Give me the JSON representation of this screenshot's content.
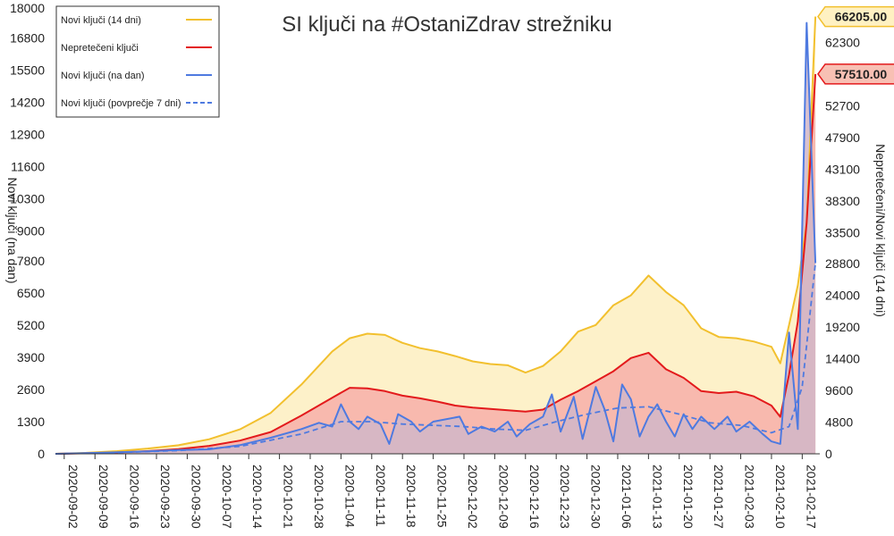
{
  "chart_data": {
    "type": "line",
    "title": "SI ključi na #OstaniZdrav strežniku",
    "y_left_label": "Novi ključi (na dan)",
    "y_right_label": "Nepretečeni/Novi ključi (14 dni)",
    "y_left_range": [
      0,
      18000
    ],
    "y_right_range": [
      0,
      67500
    ],
    "y_left_ticks": [
      "0",
      "1300",
      "2600",
      "3900",
      "5200",
      "6500",
      "7800",
      "9000",
      "10300",
      "11600",
      "12900",
      "14200",
      "15500",
      "16800",
      "18000"
    ],
    "y_right_ticks": [
      "0",
      "4800",
      "9600",
      "14400",
      "19200",
      "24000",
      "28800",
      "33500",
      "38300",
      "43100",
      "47900",
      "52700",
      "57500",
      "62300"
    ],
    "x_range": [
      "2020-08-31",
      "2021-02-21"
    ],
    "x_ticks": [
      "2020-09-02",
      "2020-09-09",
      "2020-09-16",
      "2020-09-23",
      "2020-09-30",
      "2020-10-07",
      "2020-10-14",
      "2020-10-21",
      "2020-10-28",
      "2020-11-04",
      "2020-11-11",
      "2020-11-18",
      "2020-11-25",
      "2020-12-02",
      "2020-12-09",
      "2020-12-16",
      "2020-12-23",
      "2020-12-30",
      "2021-01-06",
      "2021-01-13",
      "2021-01-20",
      "2021-01-27",
      "2021-02-03",
      "2021-02-10",
      "2021-02-17"
    ],
    "legend_position": "top-left",
    "grid": false,
    "series": [
      {
        "name": "Novi ključi (14 dni)",
        "axis": "right",
        "color": "#f2c02e",
        "fill": "#fdf1c9",
        "style": "solid",
        "points": [
          [
            "2020-08-31",
            0
          ],
          [
            "2020-09-07",
            150
          ],
          [
            "2020-09-14",
            400
          ],
          [
            "2020-09-21",
            800
          ],
          [
            "2020-09-28",
            1300
          ],
          [
            "2020-10-05",
            2200
          ],
          [
            "2020-10-12",
            3700
          ],
          [
            "2020-10-19",
            6200
          ],
          [
            "2020-10-26",
            10500
          ],
          [
            "2020-11-02",
            15500
          ],
          [
            "2020-11-06",
            17500
          ],
          [
            "2020-11-10",
            18200
          ],
          [
            "2020-11-14",
            18000
          ],
          [
            "2020-11-18",
            16800
          ],
          [
            "2020-11-22",
            16000
          ],
          [
            "2020-11-26",
            15500
          ],
          [
            "2020-11-30",
            14800
          ],
          [
            "2020-12-04",
            14000
          ],
          [
            "2020-12-08",
            13600
          ],
          [
            "2020-12-12",
            13400
          ],
          [
            "2020-12-16",
            12300
          ],
          [
            "2020-12-20",
            13300
          ],
          [
            "2020-12-24",
            15500
          ],
          [
            "2020-12-28",
            18500
          ],
          [
            "2021-01-01",
            19500
          ],
          [
            "2021-01-05",
            22500
          ],
          [
            "2021-01-09",
            24000
          ],
          [
            "2021-01-13",
            27000
          ],
          [
            "2021-01-17",
            24500
          ],
          [
            "2021-01-21",
            22500
          ],
          [
            "2021-01-25",
            19000
          ],
          [
            "2021-01-29",
            17700
          ],
          [
            "2021-02-02",
            17500
          ],
          [
            "2021-02-06",
            17000
          ],
          [
            "2021-02-10",
            16200
          ],
          [
            "2021-02-12",
            13700
          ],
          [
            "2021-02-14",
            19500
          ],
          [
            "2021-02-16",
            25500
          ],
          [
            "2021-02-18",
            35000
          ],
          [
            "2021-02-20",
            66205
          ]
        ]
      },
      {
        "name": "Nepretečeni ključi",
        "axis": "right",
        "color": "#e31a1c",
        "fill": "#f8b9ae",
        "style": "solid",
        "points": [
          [
            "2020-08-31",
            0
          ],
          [
            "2020-09-07",
            80
          ],
          [
            "2020-09-14",
            200
          ],
          [
            "2020-09-21",
            400
          ],
          [
            "2020-09-28",
            700
          ],
          [
            "2020-10-05",
            1200
          ],
          [
            "2020-10-12",
            2000
          ],
          [
            "2020-10-19",
            3300
          ],
          [
            "2020-10-26",
            5800
          ],
          [
            "2020-11-02",
            8500
          ],
          [
            "2020-11-06",
            10000
          ],
          [
            "2020-11-10",
            9900
          ],
          [
            "2020-11-14",
            9500
          ],
          [
            "2020-11-18",
            8800
          ],
          [
            "2020-11-22",
            8400
          ],
          [
            "2020-11-26",
            7900
          ],
          [
            "2020-11-30",
            7300
          ],
          [
            "2020-12-04",
            7000
          ],
          [
            "2020-12-08",
            6800
          ],
          [
            "2020-12-12",
            6600
          ],
          [
            "2020-12-16",
            6400
          ],
          [
            "2020-12-20",
            6700
          ],
          [
            "2020-12-24",
            8200
          ],
          [
            "2020-12-28",
            9500
          ],
          [
            "2021-01-01",
            11000
          ],
          [
            "2021-01-05",
            12500
          ],
          [
            "2021-01-09",
            14500
          ],
          [
            "2021-01-13",
            15300
          ],
          [
            "2021-01-17",
            12800
          ],
          [
            "2021-01-21",
            11500
          ],
          [
            "2021-01-25",
            9500
          ],
          [
            "2021-01-29",
            9200
          ],
          [
            "2021-02-02",
            9400
          ],
          [
            "2021-02-06",
            8700
          ],
          [
            "2021-02-10",
            7300
          ],
          [
            "2021-02-12",
            5600
          ],
          [
            "2021-02-14",
            12000
          ],
          [
            "2021-02-16",
            20000
          ],
          [
            "2021-02-18",
            35000
          ],
          [
            "2021-02-20",
            57510
          ]
        ]
      },
      {
        "name": "Novi ključi (na dan)",
        "axis": "left",
        "color": "#4e7ae0",
        "fill": "#d1b6c8",
        "style": "solid",
        "points": [
          [
            "2020-08-31",
            0
          ],
          [
            "2020-09-07",
            30
          ],
          [
            "2020-09-14",
            60
          ],
          [
            "2020-09-21",
            100
          ],
          [
            "2020-09-28",
            150
          ],
          [
            "2020-10-05",
            180
          ],
          [
            "2020-10-12",
            350
          ],
          [
            "2020-10-19",
            650
          ],
          [
            "2020-10-26",
            1000
          ],
          [
            "2020-10-30",
            1250
          ],
          [
            "2020-11-02",
            1100
          ],
          [
            "2020-11-04",
            2000
          ],
          [
            "2020-11-06",
            1300
          ],
          [
            "2020-11-08",
            1000
          ],
          [
            "2020-11-10",
            1500
          ],
          [
            "2020-11-13",
            1200
          ],
          [
            "2020-11-15",
            400
          ],
          [
            "2020-11-17",
            1600
          ],
          [
            "2020-11-20",
            1300
          ],
          [
            "2020-11-22",
            900
          ],
          [
            "2020-11-25",
            1300
          ],
          [
            "2020-12-01",
            1500
          ],
          [
            "2020-12-03",
            800
          ],
          [
            "2020-12-06",
            1100
          ],
          [
            "2020-12-09",
            900
          ],
          [
            "2020-12-12",
            1300
          ],
          [
            "2020-12-14",
            700
          ],
          [
            "2020-12-17",
            1200
          ],
          [
            "2020-12-20",
            1500
          ],
          [
            "2020-12-22",
            2400
          ],
          [
            "2020-12-24",
            900
          ],
          [
            "2020-12-27",
            2300
          ],
          [
            "2020-12-29",
            600
          ],
          [
            "2021-01-01",
            2700
          ],
          [
            "2021-01-03",
            1800
          ],
          [
            "2021-01-05",
            500
          ],
          [
            "2021-01-07",
            2800
          ],
          [
            "2021-01-09",
            2200
          ],
          [
            "2021-01-11",
            700
          ],
          [
            "2021-01-13",
            1500
          ],
          [
            "2021-01-15",
            2000
          ],
          [
            "2021-01-17",
            1300
          ],
          [
            "2021-01-19",
            700
          ],
          [
            "2021-01-21",
            1600
          ],
          [
            "2021-01-23",
            1000
          ],
          [
            "2021-01-25",
            1500
          ],
          [
            "2021-01-28",
            1000
          ],
          [
            "2021-01-31",
            1500
          ],
          [
            "2021-02-02",
            900
          ],
          [
            "2021-02-05",
            1300
          ],
          [
            "2021-02-08",
            800
          ],
          [
            "2021-02-10",
            500
          ],
          [
            "2021-02-12",
            400
          ],
          [
            "2021-02-14",
            4900
          ],
          [
            "2021-02-16",
            1000
          ],
          [
            "2021-02-18",
            17400
          ],
          [
            "2021-02-20",
            7700
          ]
        ]
      },
      {
        "name": "Novi ključi (povprečje 7 dni)",
        "axis": "left",
        "color": "#4e7ae0",
        "style": "dashed",
        "points": [
          [
            "2020-08-31",
            0
          ],
          [
            "2020-09-14",
            50
          ],
          [
            "2020-09-28",
            130
          ],
          [
            "2020-10-12",
            300
          ],
          [
            "2020-10-26",
            800
          ],
          [
            "2020-11-04",
            1300
          ],
          [
            "2020-11-11",
            1300
          ],
          [
            "2020-11-18",
            1200
          ],
          [
            "2020-11-25",
            1150
          ],
          [
            "2020-12-02",
            1100
          ],
          [
            "2020-12-09",
            1000
          ],
          [
            "2020-12-16",
            950
          ],
          [
            "2020-12-23",
            1300
          ],
          [
            "2020-12-30",
            1600
          ],
          [
            "2021-01-06",
            1850
          ],
          [
            "2021-01-13",
            1900
          ],
          [
            "2021-01-20",
            1600
          ],
          [
            "2021-01-27",
            1250
          ],
          [
            "2021-02-03",
            1150
          ],
          [
            "2021-02-10",
            850
          ],
          [
            "2021-02-14",
            1100
          ],
          [
            "2021-02-17",
            2700
          ],
          [
            "2021-02-20",
            7700
          ]
        ]
      }
    ],
    "callouts": [
      {
        "series": "Novi ključi (14 dni)",
        "value": "66205.00",
        "color": "#f2c02e",
        "fill": "#fff1c2"
      },
      {
        "series": "Nepretečeni ključi",
        "value": "57510.00",
        "color": "#e31a1c",
        "fill": "#f8c0b4"
      }
    ]
  }
}
